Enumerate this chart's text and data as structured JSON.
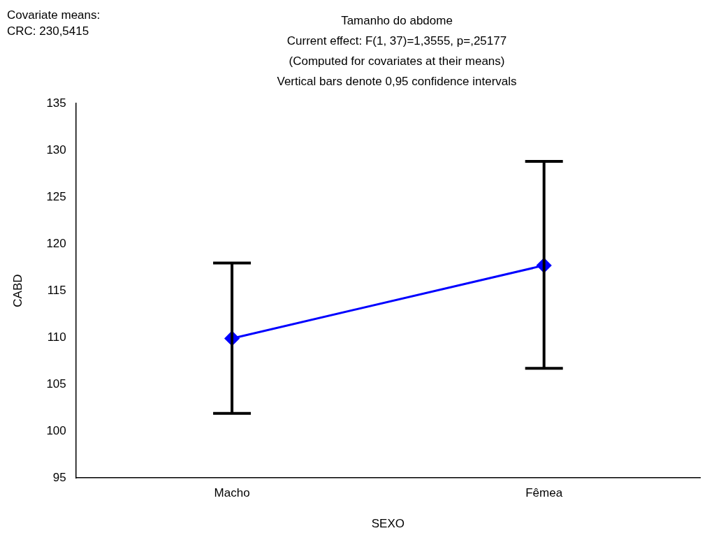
{
  "chart_data": {
    "type": "line",
    "title": "Tamanho do abdome",
    "subtitle": "Current effect: F(1, 37)=1,3555, p=,25177",
    "annotations": [
      "(Computed for covariates at their means)",
      "Vertical bars denote 0,95 confidence intervals",
      "Covariate means:",
      "CRC: 230,5415"
    ],
    "xlabel": "SEXO",
    "ylabel": "CABD",
    "categories": [
      "Macho",
      "Fêmea"
    ],
    "color": "#0000ff",
    "values": [
      109.9,
      117.7
    ],
    "errors": [
      [
        101.9,
        117.95
      ],
      [
        106.7,
        128.8
      ]
    ],
    "ylim": [
      95,
      135
    ],
    "yticks": [
      95,
      100,
      105,
      110,
      115,
      120,
      125,
      130,
      135
    ],
    "grid": false,
    "legend": false,
    "marker": "diamond",
    "line_style": "solid"
  }
}
